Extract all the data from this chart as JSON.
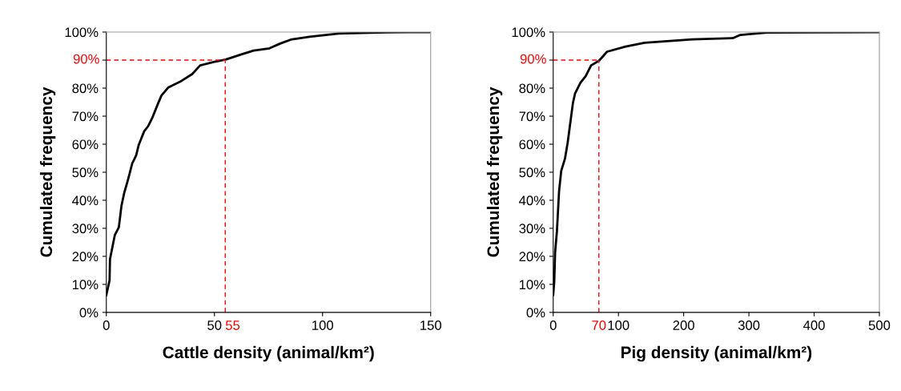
{
  "chart_data": [
    {
      "type": "line",
      "xlabel": "Cattle density (animal/km²)",
      "ylabel": "Cumulated frequency",
      "xlim": [
        0,
        150
      ],
      "xticks": [
        0,
        50,
        100,
        150
      ],
      "ylim": [
        0,
        100
      ],
      "yticks": [
        {
          "value": 0,
          "label": "0%"
        },
        {
          "value": 10,
          "label": "10%"
        },
        {
          "value": 20,
          "label": "20%"
        },
        {
          "value": 30,
          "label": "30%"
        },
        {
          "value": 40,
          "label": "40%"
        },
        {
          "value": 50,
          "label": "50%"
        },
        {
          "value": 60,
          "label": "60%"
        },
        {
          "value": 70,
          "label": "70%"
        },
        {
          "value": 80,
          "label": "80%"
        },
        {
          "value": 90,
          "label": null
        },
        {
          "value": 100,
          "label": "100%"
        }
      ],
      "grid": false,
      "legend": false,
      "series": [
        {
          "color": "#000000",
          "x": [
            0,
            1.5,
            1.7,
            3.9,
            5.8,
            7.0,
            8.3,
            10.1,
            12.0,
            13.8,
            15.0,
            17.5,
            19.4,
            21.2,
            23.7,
            25.5,
            28.6,
            34.8,
            39.7,
            43.4,
            49.6,
            55.1,
            61.9,
            68.1,
            75.5,
            80.4,
            85.3,
            94,
            107.5,
            129.7,
            150
          ],
          "values": [
            6.2,
            11.4,
            19,
            27.5,
            30.4,
            38,
            42.7,
            47.5,
            53.2,
            56,
            59.8,
            64.6,
            66.5,
            69.3,
            74.1,
            77.4,
            80.2,
            82.6,
            85,
            88.1,
            89.3,
            90.2,
            91.9,
            93.4,
            94.2,
            95.9,
            97.3,
            98.3,
            99.5,
            99.9,
            100
          ]
        }
      ],
      "ref_lines": [
        {
          "axis": "y",
          "value": 90,
          "label": "90%",
          "color": "#ff0000",
          "line_style": "dashed"
        },
        {
          "axis": "x",
          "value": 55,
          "label": "55",
          "color": "#ff0000",
          "line_style": "dashed"
        }
      ]
    },
    {
      "type": "line",
      "xlabel": "Pig density (animal/km²)",
      "ylabel": "Cumulated frequency",
      "xlim": [
        0,
        500
      ],
      "xticks": [
        0,
        100,
        200,
        300,
        400,
        500
      ],
      "ylim": [
        0,
        100
      ],
      "yticks": [
        {
          "value": 0,
          "label": "0%"
        },
        {
          "value": 10,
          "label": "10%"
        },
        {
          "value": 20,
          "label": "20%"
        },
        {
          "value": 30,
          "label": "30%"
        },
        {
          "value": 40,
          "label": "40%"
        },
        {
          "value": 50,
          "label": "50%"
        },
        {
          "value": 60,
          "label": "60%"
        },
        {
          "value": 70,
          "label": "70%"
        },
        {
          "value": 80,
          "label": "80%"
        },
        {
          "value": 90,
          "label": null
        },
        {
          "value": 100,
          "label": "100%"
        }
      ],
      "grid": false,
      "legend": false,
      "series": [
        {
          "color": "#000000",
          "x": [
            0,
            1.6,
            2.9,
            5.7,
            9,
            12.3,
            18,
            22.1,
            25.4,
            30.3,
            33.5,
            41.7,
            49.9,
            58.1,
            70.3,
            82.6,
            111,
            140,
            213.5,
            275,
            287,
            328,
            500
          ],
          "values": [
            6.2,
            11,
            21.4,
            29,
            43.3,
            50.5,
            54.8,
            60.5,
            66.2,
            74.8,
            78.1,
            81.9,
            84.3,
            88.1,
            89.8,
            93,
            94.8,
            96.2,
            97.4,
            97.8,
            99,
            99.8,
            100
          ]
        }
      ],
      "ref_lines": [
        {
          "axis": "y",
          "value": 90,
          "label": "90%",
          "color": "#ff0000",
          "line_style": "dashed"
        },
        {
          "axis": "x",
          "value": 70,
          "label": "70",
          "color": "#ff0000",
          "line_style": "dashed"
        }
      ]
    }
  ]
}
